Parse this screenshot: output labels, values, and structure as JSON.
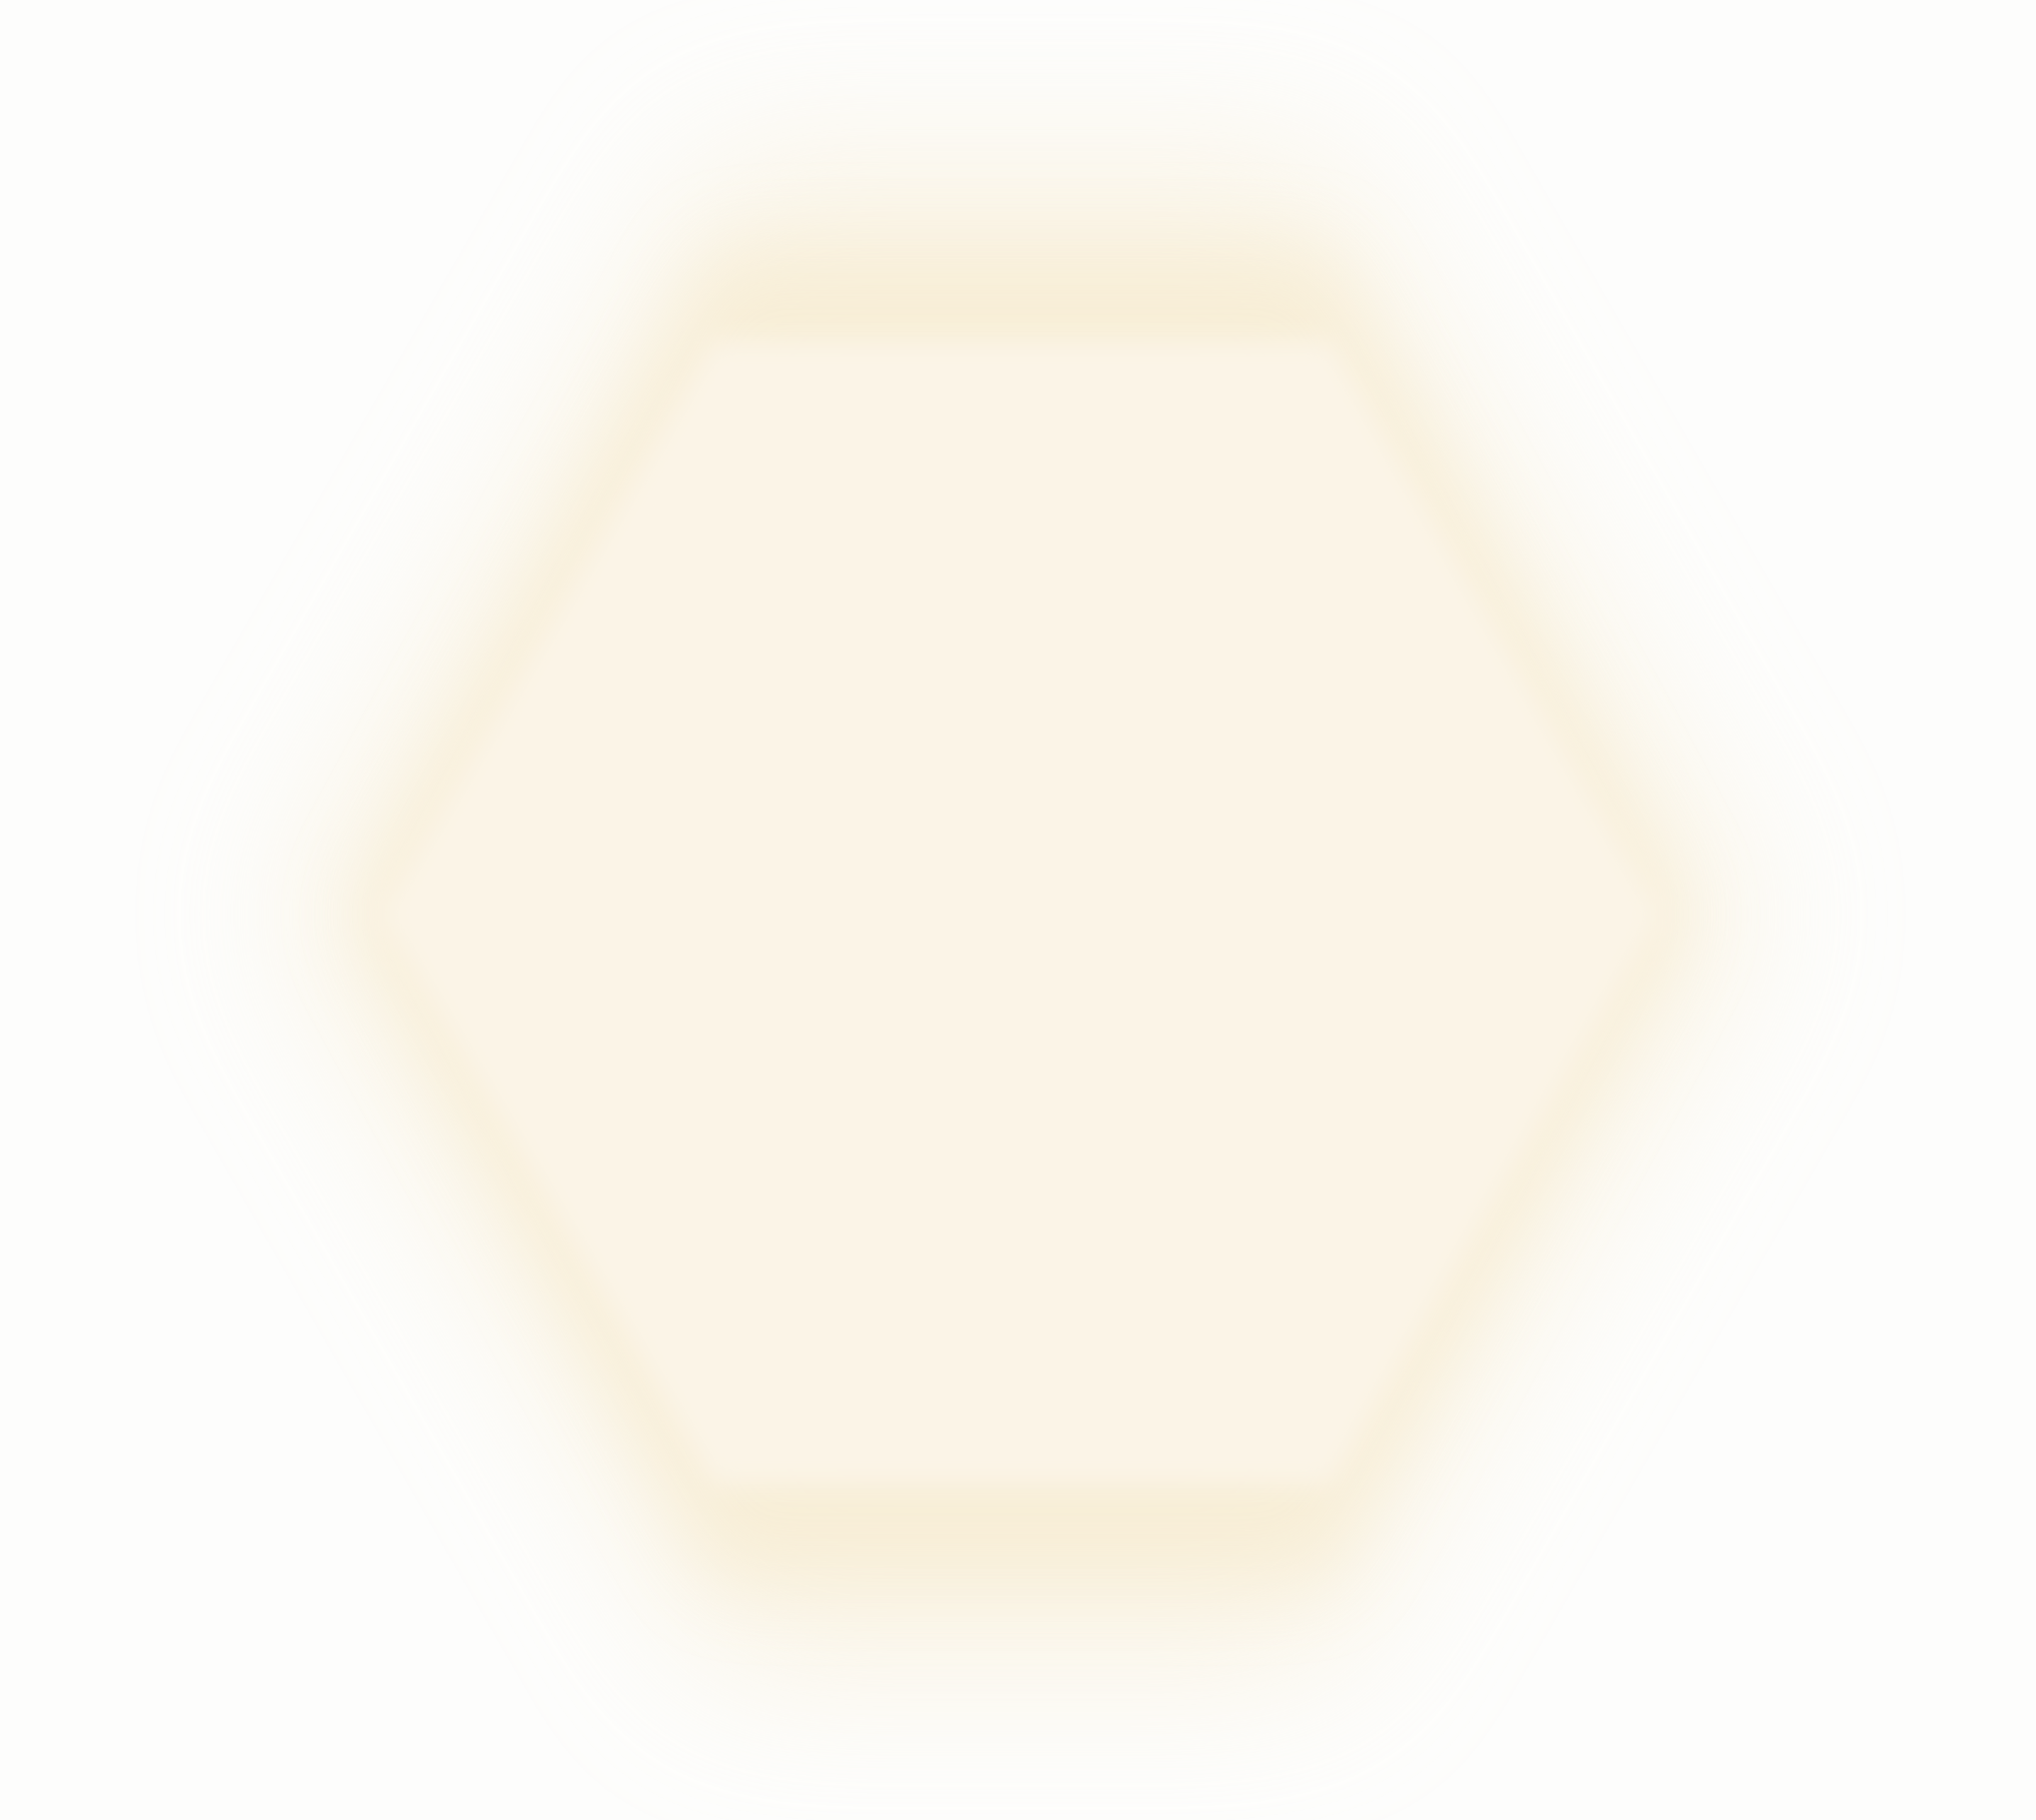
{
  "colors": {
    "background": "#fdfdfc",
    "shape_core": "#fbf4e7",
    "shape_glow": "#f7ecd2"
  },
  "shape": {
    "kind": "hexagon-icon"
  }
}
